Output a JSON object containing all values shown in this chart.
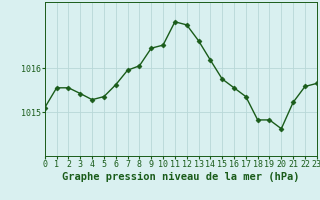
{
  "hours": [
    0,
    1,
    2,
    3,
    4,
    5,
    6,
    7,
    8,
    9,
    10,
    11,
    12,
    13,
    14,
    15,
    16,
    17,
    18,
    19,
    20,
    21,
    22,
    23
  ],
  "pressure": [
    1015.1,
    1015.55,
    1015.55,
    1015.42,
    1015.28,
    1015.35,
    1015.62,
    1015.95,
    1016.05,
    1016.45,
    1016.52,
    1017.05,
    1016.98,
    1016.62,
    1016.18,
    1015.75,
    1015.55,
    1015.35,
    1014.82,
    1014.82,
    1014.62,
    1015.22,
    1015.58,
    1015.65
  ],
  "line_color": "#1a5c1a",
  "marker_color": "#1a5c1a",
  "bg_color": "#d9f0f0",
  "grid_color": "#b8d8d8",
  "xlabel": "Graphe pression niveau de la mer (hPa)",
  "ylabel_ticks": [
    1015,
    1016
  ],
  "ylim": [
    1014.0,
    1017.5
  ],
  "xlim": [
    0,
    23
  ],
  "axis_color": "#1a5c1a",
  "tick_fontsize": 6.0,
  "xlabel_fontsize": 7.5,
  "marker_size": 2.5,
  "linewidth": 1.0
}
